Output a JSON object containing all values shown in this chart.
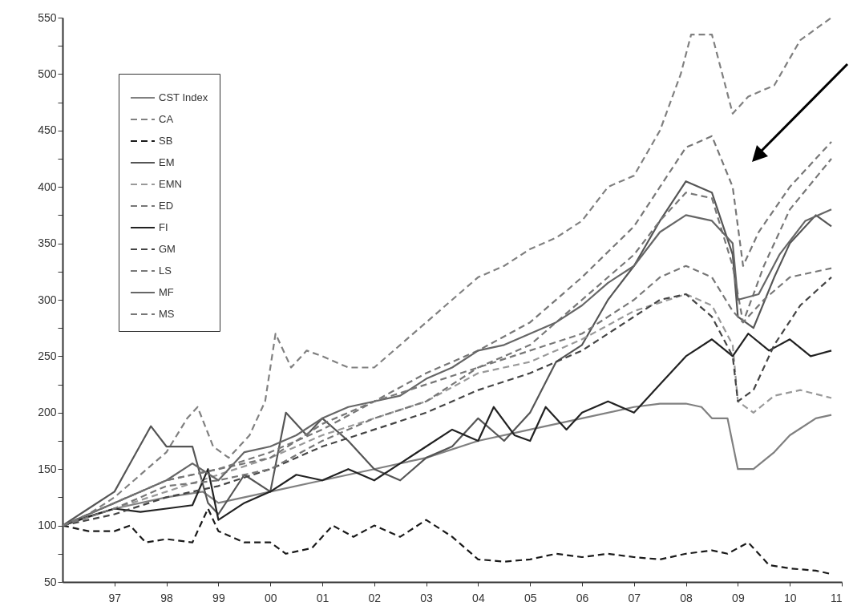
{
  "chart_data": {
    "type": "line",
    "xlim": [
      1996,
      2011
    ],
    "ylim": [
      50,
      550
    ],
    "xticks": [
      {
        "value": 1997,
        "label": "97"
      },
      {
        "value": 1998,
        "label": "98"
      },
      {
        "value": 1999,
        "label": "99"
      },
      {
        "value": 2000,
        "label": "00"
      },
      {
        "value": 2001,
        "label": "01"
      },
      {
        "value": 2002,
        "label": "02"
      },
      {
        "value": 2003,
        "label": "03"
      },
      {
        "value": 2004,
        "label": "04"
      },
      {
        "value": 2005,
        "label": "05"
      },
      {
        "value": 2006,
        "label": "06"
      },
      {
        "value": 2007,
        "label": "07"
      },
      {
        "value": 2008,
        "label": "08"
      },
      {
        "value": 2009,
        "label": "09"
      },
      {
        "value": 2010,
        "label": "10"
      },
      {
        "value": 2011,
        "label": "11"
      }
    ],
    "yticks": [
      50,
      {
        "value": 75,
        "label": null
      },
      100,
      {
        "value": 125,
        "label": null
      },
      150,
      {
        "value": 175,
        "label": null
      },
      200,
      {
        "value": 225,
        "label": null
      },
      250,
      {
        "value": 275,
        "label": null
      },
      300,
      {
        "value": 325,
        "label": null
      },
      350,
      {
        "value": 375,
        "label": null
      },
      400,
      {
        "value": 425,
        "label": null
      },
      450,
      {
        "value": 475,
        "label": null
      },
      500,
      {
        "value": 525,
        "label": null
      },
      550
    ],
    "grid": false,
    "legend": "top left",
    "series": [
      {
        "name": "CST Index",
        "color": "#808080",
        "line_style": "solid",
        "x": [
          1996,
          1997,
          1998,
          1998.7,
          1999,
          1999.5,
          2000,
          2001,
          2002,
          2003,
          2004,
          2005,
          2006,
          2007,
          2007.5,
          2008,
          2008.3,
          2008.5,
          2008.8,
          2009,
          2009.3,
          2009.7,
          2010,
          2010.5,
          2010.8
        ],
        "values": [
          100,
          115,
          125,
          130,
          120,
          125,
          130,
          140,
          150,
          160,
          175,
          185,
          195,
          205,
          208,
          208,
          205,
          195,
          195,
          150,
          150,
          165,
          180,
          195,
          198
        ]
      },
      {
        "name": "CA",
        "color": "#808080",
        "line_style": "dashed",
        "x": [
          1996,
          1996.5,
          1997,
          1997.5,
          1998,
          1998.4,
          1998.6,
          1998.9,
          1999.2,
          1999.6,
          1999.9,
          2000.1,
          2000.4,
          2000.7,
          2001,
          2001.5,
          2002,
          2002.5,
          2003,
          2003.5,
          2004,
          2004.5,
          2005,
          2005.5,
          2006,
          2006.5,
          2007,
          2007.5,
          2007.9,
          2008.1,
          2008.5,
          2008.9,
          2009.2,
          2009.7,
          2010.2,
          2010.8
        ],
        "values": [
          100,
          110,
          125,
          145,
          165,
          195,
          205,
          170,
          160,
          180,
          210,
          270,
          240,
          255,
          250,
          240,
          240,
          260,
          280,
          300,
          320,
          330,
          345,
          355,
          370,
          400,
          410,
          450,
          500,
          535,
          535,
          465,
          480,
          490,
          530,
          550
        ]
      },
      {
        "name": "SB",
        "color": "#1a1a1a",
        "line_style": "dashed",
        "x": [
          1996,
          1996.5,
          1997,
          1997.3,
          1997.6,
          1998,
          1998.5,
          1998.8,
          1999,
          1999.5,
          2000,
          2000.3,
          2000.8,
          2001.2,
          2001.6,
          2002,
          2002.5,
          2003,
          2003.5,
          2004,
          2004.5,
          2005,
          2005.5,
          2006,
          2006.5,
          2007,
          2007.5,
          2008,
          2008.5,
          2008.8,
          2009.2,
          2009.6,
          2010,
          2010.5,
          2010.8
        ],
        "values": [
          100,
          95,
          95,
          100,
          85,
          88,
          85,
          115,
          95,
          85,
          85,
          75,
          80,
          100,
          90,
          100,
          90,
          105,
          90,
          70,
          68,
          70,
          75,
          72,
          75,
          72,
          70,
          75,
          78,
          75,
          85,
          65,
          62,
          60,
          57
        ]
      },
      {
        "name": "EM",
        "color": "#555555",
        "line_style": "solid",
        "x": [
          1996,
          1996.5,
          1997,
          1997.3,
          1997.7,
          1998,
          1998.5,
          1998.8,
          1999,
          1999.5,
          2000,
          2000.3,
          2000.7,
          2001,
          2001.5,
          2002,
          2002.5,
          2003,
          2003.5,
          2004,
          2004.5,
          2005,
          2005.5,
          2006,
          2006.5,
          2007,
          2007.5,
          2008,
          2008.5,
          2008.9,
          2009,
          2009.3,
          2009.7,
          2010,
          2010.5,
          2010.8
        ],
        "values": [
          100,
          115,
          130,
          155,
          188,
          170,
          170,
          120,
          110,
          145,
          130,
          200,
          180,
          195,
          175,
          150,
          140,
          160,
          170,
          195,
          175,
          200,
          245,
          260,
          300,
          330,
          370,
          405,
          395,
          340,
          285,
          275,
          320,
          350,
          375,
          365
        ]
      },
      {
        "name": "EMN",
        "color": "#999999",
        "line_style": "dashed",
        "x": [
          1996,
          1997,
          1998,
          1999,
          2000,
          2001,
          2002,
          2003,
          2004,
          2005,
          2006,
          2007,
          2008,
          2008.5,
          2008.9,
          2009,
          2009.3,
          2009.7,
          2010.2,
          2010.8
        ],
        "values": [
          100,
          115,
          130,
          145,
          160,
          180,
          195,
          210,
          235,
          245,
          265,
          290,
          305,
          295,
          260,
          210,
          200,
          215,
          220,
          213
        ]
      },
      {
        "name": "ED",
        "color": "#777777",
        "line_style": "dashed",
        "x": [
          1996,
          1997,
          1998,
          1999,
          2000,
          2001,
          2002,
          2003,
          2004,
          2005,
          2006,
          2007,
          2007.5,
          2008,
          2008.5,
          2008.9,
          2009.1,
          2009.4,
          2010,
          2010.8
        ],
        "values": [
          100,
          120,
          140,
          150,
          160,
          190,
          210,
          235,
          255,
          280,
          320,
          365,
          400,
          435,
          445,
          400,
          330,
          360,
          400,
          440
        ]
      },
      {
        "name": "FI",
        "color": "#222222",
        "line_style": "solid",
        "x": [
          1996,
          1996.5,
          1997,
          1997.5,
          1998,
          1998.5,
          1998.8,
          1999,
          1999.5,
          2000,
          2000.5,
          2001,
          2001.5,
          2002,
          2002.5,
          2003,
          2003.5,
          2004,
          2004.3,
          2004.7,
          2005,
          2005.3,
          2005.7,
          2006,
          2006.5,
          2007,
          2007.5,
          2008,
          2008.5,
          2008.9,
          2009.2,
          2009.6,
          2010,
          2010.4,
          2010.8
        ],
        "values": [
          100,
          108,
          115,
          112,
          115,
          118,
          150,
          105,
          120,
          130,
          145,
          140,
          150,
          140,
          155,
          170,
          185,
          175,
          205,
          180,
          175,
          205,
          185,
          200,
          210,
          200,
          225,
          250,
          265,
          250,
          270,
          255,
          265,
          250,
          255
        ]
      },
      {
        "name": "GM",
        "color": "#444444",
        "line_style": "dashed",
        "x": [
          1996,
          1997,
          1998,
          1999,
          2000,
          2001,
          2002,
          2003,
          2004,
          2005,
          2006,
          2007,
          2007.5,
          2008,
          2008.5,
          2008.9,
          2009,
          2009.3,
          2009.7,
          2010.2,
          2010.8
        ],
        "values": [
          100,
          110,
          125,
          135,
          150,
          170,
          185,
          200,
          220,
          235,
          255,
          285,
          300,
          305,
          285,
          250,
          210,
          220,
          260,
          295,
          320
        ]
      },
      {
        "name": "LS",
        "color": "#777777",
        "line_style": "dashed",
        "x": [
          1996,
          1997,
          1998,
          1999,
          2000,
          2001,
          2002,
          2003,
          2004,
          2005,
          2006,
          2007,
          2007.5,
          2008,
          2008.5,
          2008.9,
          2009.1,
          2009.5,
          2010,
          2010.8
        ],
        "values": [
          100,
          115,
          135,
          140,
          150,
          175,
          195,
          210,
          240,
          260,
          300,
          340,
          370,
          395,
          390,
          330,
          280,
          330,
          380,
          425
        ]
      },
      {
        "name": "MF",
        "color": "#666666",
        "line_style": "solid",
        "x": [
          1996,
          1997,
          1998,
          1998.5,
          1999,
          1999.5,
          2000,
          2000.5,
          2001,
          2001.5,
          2002,
          2002.5,
          2003,
          2003.5,
          2004,
          2004.5,
          2005,
          2005.5,
          2006,
          2006.5,
          2007,
          2007.5,
          2008,
          2008.5,
          2008.9,
          2009,
          2009.4,
          2009.8,
          2010.3,
          2010.8
        ],
        "values": [
          100,
          120,
          140,
          155,
          140,
          165,
          170,
          180,
          195,
          205,
          210,
          215,
          230,
          240,
          255,
          260,
          270,
          280,
          295,
          315,
          330,
          360,
          375,
          370,
          350,
          300,
          305,
          340,
          370,
          380
        ]
      },
      {
        "name": "MS",
        "color": "#777777",
        "line_style": "dashed",
        "x": [
          1996,
          1997,
          1998,
          1999,
          2000,
          2001,
          2002,
          2003,
          2004,
          2005,
          2006,
          2007,
          2007.5,
          2008,
          2008.5,
          2008.9,
          2009.1,
          2009.5,
          2010,
          2010.8
        ],
        "values": [
          100,
          120,
          140,
          150,
          165,
          185,
          210,
          225,
          240,
          255,
          270,
          300,
          320,
          330,
          320,
          290,
          280,
          300,
          320,
          328
        ]
      }
    ]
  }
}
